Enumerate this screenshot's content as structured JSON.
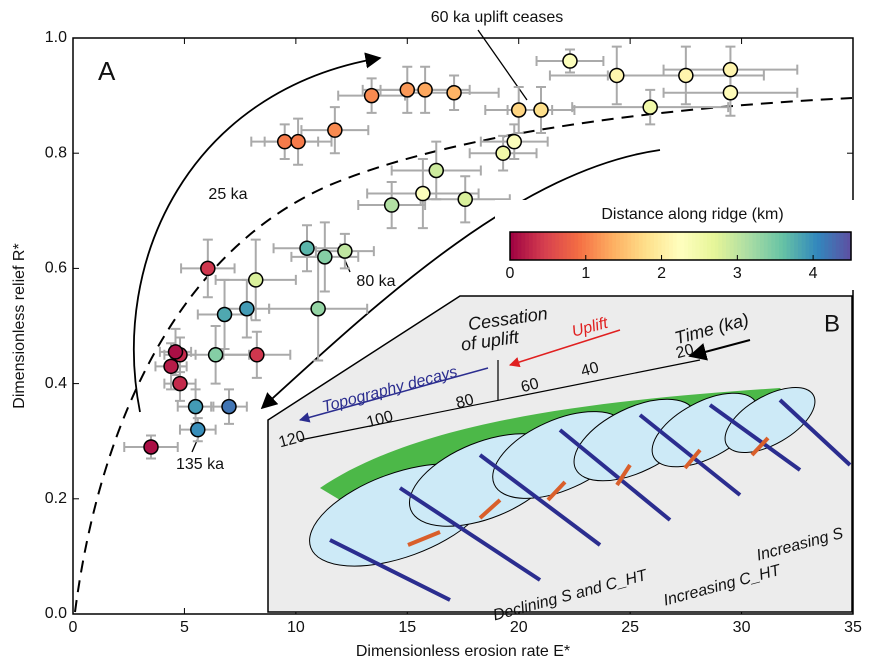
{
  "chart_data": {
    "type": "scatter",
    "panel_label": "A",
    "xlabel": "Dimensionless erosion rate E*",
    "ylabel": "Dimensionless relief R*",
    "xlim": [
      0,
      35
    ],
    "ylim": [
      0,
      1
    ],
    "xticks": [
      0,
      5,
      10,
      15,
      20,
      25,
      30,
      35
    ],
    "yticks": [
      {
        "value": 0,
        "label": "0.0"
      },
      0.2,
      0.4,
      0.6,
      0.8,
      {
        "value": 1,
        "label": "1.0"
      }
    ],
    "series": [
      {
        "x": [
          3.5,
          5.6,
          5.5,
          7.0,
          4.8,
          4.6,
          4.4,
          4.8,
          6.4,
          8.25,
          6.8,
          7.8,
          6.05,
          8.2,
          11.0,
          10.5,
          11.3,
          12.2,
          14.3,
          15.7,
          16.3,
          17.6,
          9.5,
          10.1,
          11.75,
          13.4,
          15.0,
          15.8,
          17.1,
          19.3,
          19.8,
          20.0,
          21.0,
          22.3,
          24.4,
          25.9,
          27.5,
          29.5,
          29.5
        ],
        "y": [
          0.29,
          0.32,
          0.36,
          0.36,
          0.45,
          0.455,
          0.43,
          0.4,
          0.45,
          0.45,
          0.52,
          0.53,
          0.6,
          0.58,
          0.53,
          0.635,
          0.62,
          0.63,
          0.71,
          0.73,
          0.77,
          0.72,
          0.82,
          0.82,
          0.84,
          0.9,
          0.91,
          0.91,
          0.905,
          0.8,
          0.82,
          0.875,
          0.875,
          0.96,
          0.935,
          0.88,
          0.935,
          0.945,
          0.905
        ],
        "xerr": [
          1.2,
          0.8,
          0.8,
          0.8,
          0.7,
          0.7,
          0.7,
          0.7,
          1.5,
          1.5,
          1.2,
          1.0,
          1.2,
          1.8,
          2.2,
          1.5,
          1.5,
          1.3,
          1.5,
          2.5,
          2.0,
          2.0,
          1.5,
          1.5,
          1.5,
          1.5,
          2.0,
          2.0,
          2.0,
          1.5,
          1.5,
          1.5,
          1.5,
          1.5,
          3.0,
          3.5,
          3.5,
          3.0,
          3.0
        ],
        "yerr": [
          0.02,
          0.02,
          0.03,
          0.03,
          0.03,
          0.04,
          0.04,
          0.03,
          0.05,
          0.04,
          0.06,
          0.05,
          0.05,
          0.07,
          0.09,
          0.04,
          0.06,
          0.03,
          0.04,
          0.06,
          0.05,
          0.04,
          0.03,
          0.04,
          0.04,
          0.03,
          0.04,
          0.04,
          0.03,
          0.03,
          0.03,
          0.04,
          0.04,
          0.02,
          0.05,
          0.03,
          0.05,
          0.04,
          0.04
        ],
        "color_values": [
          0.1,
          4.0,
          3.9,
          4.2,
          0.3,
          0.1,
          0.2,
          0.3,
          3.4,
          0.4,
          3.8,
          3.9,
          0.4,
          2.8,
          3.3,
          3.7,
          3.4,
          3.0,
          3.1,
          2.3,
          2.9,
          2.8,
          1.0,
          1.0,
          1.1,
          1.1,
          1.2,
          1.3,
          1.4,
          2.5,
          2.3,
          1.7,
          1.8,
          2.3,
          2.1,
          2.5,
          2.1,
          2.1,
          2.2
        ]
      }
    ],
    "colorbar": {
      "label": "Distance along ridge (km)",
      "lim": [
        0,
        4.5
      ],
      "ticks": [
        0,
        1,
        2,
        3,
        4
      ],
      "colormap": [
        "#9e0142",
        "#d53e4f",
        "#f46d43",
        "#fdae61",
        "#fee08b",
        "#ffffbf",
        "#e6f598",
        "#abdda4",
        "#66c2a5",
        "#3288bd",
        "#5e4fa2"
      ]
    },
    "annotations": [
      "60 ka uplift ceases",
      "25 ka",
      "80 ka",
      "135 ka"
    ]
  },
  "inset": {
    "label": "B",
    "cessation": [
      "Cessation",
      "of uplift"
    ],
    "uplift": "Uplift",
    "time": "Time (ka)",
    "topography": "Topography decays",
    "time_labels": [
      "20",
      "40",
      "60",
      "80",
      "100",
      "120"
    ],
    "increasing_s": "Increasing S",
    "increasing_c": "Increasing C_HT",
    "declining": "Declining S and C_HT"
  }
}
